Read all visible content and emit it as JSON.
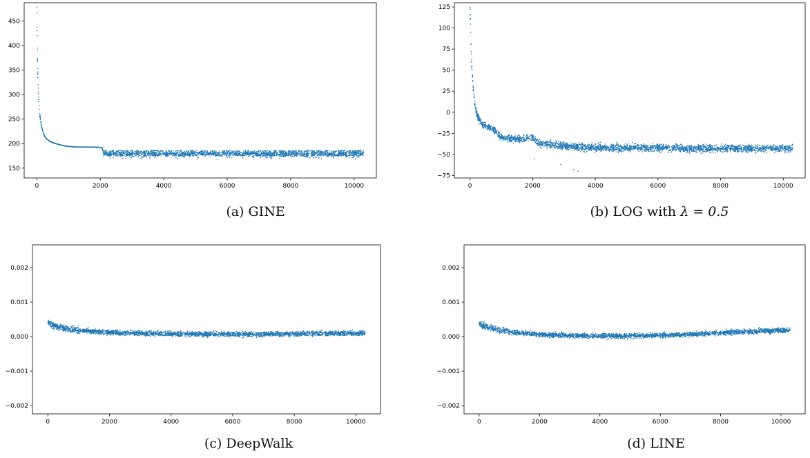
{
  "chart_data": [
    {
      "type": "scatter",
      "panel": "a",
      "caption": "(a) GINE",
      "xlabel": "",
      "ylabel": "",
      "xlim": [
        -400,
        10700
      ],
      "ylim": [
        130,
        487
      ],
      "xticks": [
        0,
        2000,
        4000,
        6000,
        8000,
        10000
      ],
      "yticks": [
        150,
        200,
        250,
        300,
        350,
        400,
        450
      ],
      "xtick_labels": [
        "0",
        "2000",
        "4000",
        "6000",
        "8000",
        "10000"
      ],
      "ytick_labels": [
        "150",
        "200",
        "250",
        "300",
        "350",
        "400",
        "450"
      ],
      "color": "#1f77b4",
      "grid": false,
      "x": [
        0,
        10,
        20,
        40,
        60,
        80,
        100,
        130,
        160,
        200,
        250,
        300,
        400,
        500,
        700,
        900,
        1200,
        1500,
        1800,
        2050,
        2100,
        2500,
        3000,
        4000,
        5000,
        6000,
        7000,
        8000,
        9000,
        10300
      ],
      "y": [
        478,
        420,
        370,
        320,
        290,
        270,
        255,
        242,
        232,
        222,
        215,
        210,
        205,
        202,
        198,
        195,
        193,
        193,
        193,
        192,
        182,
        182,
        182,
        182,
        182,
        182,
        182,
        182,
        182,
        182
      ],
      "scatter_band": {
        "x_range": [
          2100,
          10300
        ],
        "y_range": [
          150,
          186
        ]
      }
    },
    {
      "type": "scatter",
      "panel": "b",
      "caption_prefix": "(b) LOG with ",
      "caption_math": "λ = 0.5",
      "xlabel": "",
      "ylabel": "",
      "xlim": [
        -500,
        10700
      ],
      "ylim": [
        -78,
        130
      ],
      "xticks": [
        0,
        2000,
        4000,
        6000,
        8000,
        10000
      ],
      "yticks": [
        -75,
        -50,
        -25,
        0,
        25,
        50,
        75,
        100,
        125
      ],
      "xtick_labels": [
        "0",
        "2000",
        "4000",
        "6000",
        "8000",
        "10000"
      ],
      "ytick_labels": [
        "−75",
        "−50",
        "−25",
        "0",
        "25",
        "50",
        "75",
        "100",
        "125"
      ],
      "color": "#1f77b4",
      "grid": false,
      "x": [
        0,
        20,
        50,
        100,
        150,
        200,
        300,
        400,
        600,
        800,
        1000,
        1500,
        2000,
        2200,
        3000,
        4000,
        5000,
        6000,
        7000,
        8000,
        9000,
        10300
      ],
      "y": [
        124,
        95,
        60,
        30,
        10,
        0,
        -10,
        -15,
        -18,
        -22,
        -30,
        -32,
        -30,
        -37,
        -40,
        -42,
        -42,
        -42,
        -43,
        -43,
        -43,
        -43
      ],
      "outliers": [
        [
          3300,
          -68
        ],
        [
          3450,
          -70
        ],
        [
          2050,
          -55
        ],
        [
          2900,
          -62
        ]
      ]
    },
    {
      "type": "scatter",
      "panel": "c",
      "caption": "(c) DeepWalk",
      "xlabel": "",
      "ylabel": "",
      "xlim": [
        -500,
        10800
      ],
      "ylim": [
        -0.00224,
        0.00266
      ],
      "xticks": [
        0,
        2000,
        4000,
        6000,
        8000,
        10000
      ],
      "yticks": [
        -0.002,
        -0.001,
        0.0,
        0.001,
        0.002
      ],
      "xtick_labels": [
        "0",
        "2000",
        "4000",
        "6000",
        "8000",
        "10000"
      ],
      "ytick_labels": [
        "−0.002",
        "−0.001",
        "0.000",
        "0.001",
        "0.002"
      ],
      "color": "#1f77b4",
      "grid": false,
      "x": [
        0,
        200,
        500,
        1000,
        2000,
        3000,
        4000,
        5000,
        6000,
        7000,
        8000,
        9000,
        10300
      ],
      "y": [
        0.0004,
        0.00032,
        0.00025,
        0.00018,
        0.00012,
        0.0001,
        8e-05,
        7e-05,
        7e-05,
        7e-05,
        8e-05,
        9e-05,
        0.0001
      ]
    },
    {
      "type": "scatter",
      "panel": "d",
      "caption": "(d) LINE",
      "xlabel": "",
      "ylabel": "",
      "xlim": [
        -500,
        10800
      ],
      "ylim": [
        -0.00224,
        0.00266
      ],
      "xticks": [
        0,
        2000,
        4000,
        6000,
        8000,
        10000
      ],
      "yticks": [
        -0.002,
        -0.001,
        0.0,
        0.001,
        0.002
      ],
      "xtick_labels": [
        "0",
        "2000",
        "4000",
        "6000",
        "8000",
        "10000"
      ],
      "ytick_labels": [
        "−0.002",
        "−0.001",
        "0.000",
        "0.001",
        "0.002"
      ],
      "color": "#1f77b4",
      "grid": false,
      "x": [
        0,
        200,
        500,
        1000,
        2000,
        3000,
        4000,
        5000,
        6000,
        7000,
        8000,
        9000,
        10300
      ],
      "y": [
        0.00038,
        0.0003,
        0.00022,
        0.00014,
        6e-05,
        3e-05,
        2e-05,
        2e-05,
        4e-05,
        7e-05,
        0.00011,
        0.00015,
        0.00019
      ]
    }
  ]
}
